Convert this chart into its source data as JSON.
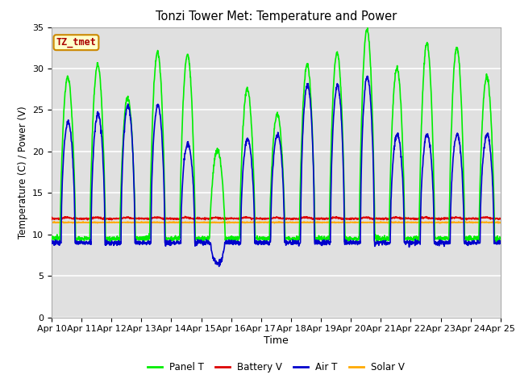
{
  "title": "Tonzi Tower Met: Temperature and Power",
  "xlabel": "Time",
  "ylabel": "Temperature (C) / Power (V)",
  "ylim": [
    0,
    35
  ],
  "yticks": [
    0,
    5,
    10,
    15,
    20,
    25,
    30,
    35
  ],
  "xtick_labels": [
    "Apr 10",
    "Apr 11",
    "Apr 12",
    "Apr 13",
    "Apr 14",
    "Apr 15",
    "Apr 16",
    "Apr 17",
    "Apr 18",
    "Apr 19",
    "Apr 20",
    "Apr 21",
    "Apr 22",
    "Apr 23",
    "Apr 24",
    "Apr 25"
  ],
  "colors": {
    "panel_t": "#00ee00",
    "battery_v": "#dd0000",
    "air_t": "#0000cc",
    "solar_v": "#ffaa00"
  },
  "legend_labels": [
    "Panel T",
    "Battery V",
    "Air T",
    "Solar V"
  ],
  "tag_label": "TZ_tmet",
  "tag_bg": "#ffffcc",
  "tag_border": "#cc8800",
  "tag_text_color": "#aa0000",
  "fig_bg": "#ffffff",
  "plot_bg": "#e0e0e0",
  "grid_color": "#ffffff",
  "n_points": 1800,
  "days": 15,
  "panel_day_peaks": [
    29,
    30.5,
    26.5,
    32,
    31.7,
    20.2,
    27.5,
    24.5,
    30.5,
    32,
    34.7,
    30.1,
    33,
    32.5,
    29
  ],
  "panel_night_base": 9.5,
  "air_day_peaks": [
    23.5,
    24.5,
    25.5,
    25.5,
    21.0,
    6.5,
    21.5,
    22.0,
    28.0,
    28.0,
    29.0,
    22.0,
    22.0,
    22.0,
    22.0
  ],
  "air_night_base": 9.0,
  "battery_v_base": 11.9,
  "solar_v_base": 11.45,
  "linewidth": 1.2
}
